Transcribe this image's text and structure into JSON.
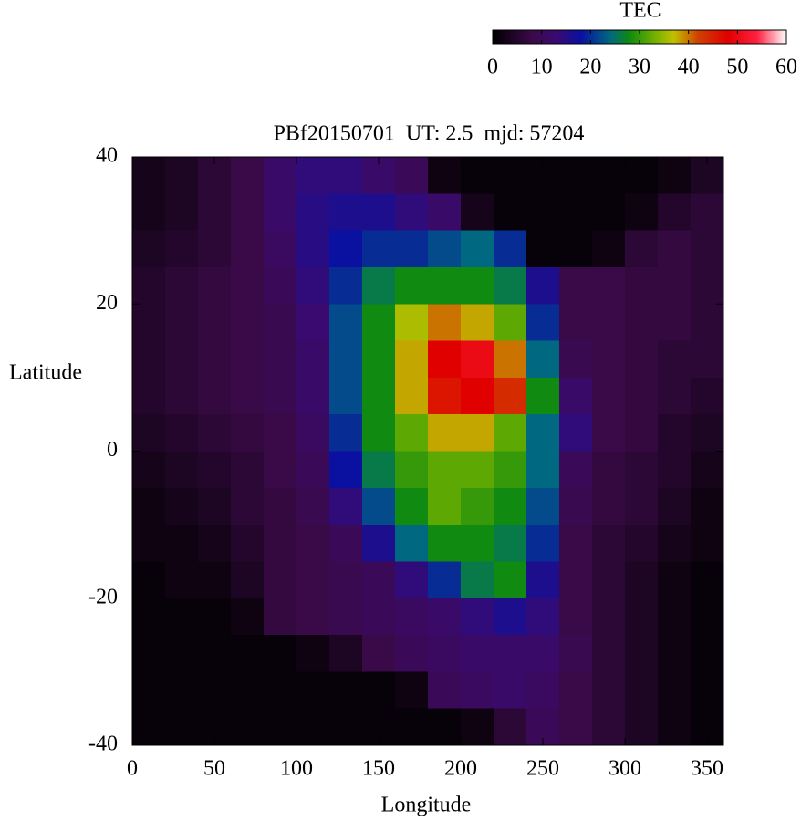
{
  "chart_data": {
    "type": "heatmap",
    "title": "PBf20150701  UT: 2.5  mjd: 57204",
    "xlabel": "Longitude",
    "ylabel": "Latitude",
    "colorbar_label": "TEC",
    "xlim": [
      0,
      360
    ],
    "ylim": [
      -40,
      40
    ],
    "xticks": [
      0,
      50,
      100,
      150,
      200,
      250,
      300,
      350
    ],
    "yticks": [
      -40,
      -20,
      0,
      20,
      40
    ],
    "clim": [
      0,
      60
    ],
    "cticks": [
      0,
      10,
      20,
      30,
      40,
      50,
      60
    ],
    "colormap": [
      {
        "value": 0,
        "color": "#000000"
      },
      {
        "value": 8,
        "color": "#3a0a48"
      },
      {
        "value": 13,
        "color": "#3a0a70"
      },
      {
        "value": 18,
        "color": "#0a10a0"
      },
      {
        "value": 24,
        "color": "#006880"
      },
      {
        "value": 28,
        "color": "#108a10"
      },
      {
        "value": 33,
        "color": "#70b000"
      },
      {
        "value": 37,
        "color": "#c0c000"
      },
      {
        "value": 42,
        "color": "#d04000"
      },
      {
        "value": 48,
        "color": "#e00000"
      },
      {
        "value": 54,
        "color": "#ff2040"
      },
      {
        "value": 60,
        "color": "#ffffff"
      }
    ],
    "xbins": [
      0,
      20,
      40,
      60,
      80,
      100,
      120,
      140,
      160,
      180,
      200,
      220,
      240,
      260,
      280,
      300,
      320,
      340,
      360
    ],
    "ybins": [
      40,
      35,
      30,
      25,
      20,
      15,
      10,
      5,
      0,
      -5,
      -10,
      -15,
      -20,
      -25,
      -30,
      -35,
      -40
    ],
    "z": [
      [
        3,
        4,
        6,
        8,
        12,
        14,
        14,
        12,
        10,
        2,
        1,
        1,
        1,
        1,
        1,
        1,
        2,
        4
      ],
      [
        3,
        4,
        6,
        8,
        12,
        15,
        16,
        16,
        14,
        12,
        3,
        1,
        1,
        1,
        1,
        2,
        5,
        6
      ],
      [
        4,
        5,
        6,
        8,
        11,
        15,
        18,
        20,
        20,
        22,
        24,
        20,
        1,
        1,
        2,
        6,
        7,
        6
      ],
      [
        5,
        6,
        7,
        8,
        10,
        14,
        20,
        26,
        28,
        28,
        28,
        26,
        16,
        8,
        8,
        7,
        7,
        6
      ],
      [
        5,
        6,
        7,
        8,
        9,
        13,
        22,
        28,
        36,
        40,
        38,
        32,
        20,
        8,
        8,
        7,
        7,
        6
      ],
      [
        5,
        6,
        7,
        8,
        9,
        12,
        22,
        28,
        38,
        48,
        50,
        40,
        24,
        9,
        8,
        7,
        6,
        6
      ],
      [
        5,
        6,
        7,
        8,
        9,
        12,
        22,
        28,
        38,
        46,
        48,
        44,
        28,
        12,
        8,
        7,
        6,
        5
      ],
      [
        4,
        5,
        6,
        7,
        8,
        11,
        20,
        28,
        32,
        38,
        38,
        32,
        24,
        14,
        8,
        7,
        5,
        4
      ],
      [
        3,
        4,
        5,
        6,
        8,
        10,
        18,
        26,
        30,
        32,
        32,
        30,
        24,
        10,
        7,
        6,
        5,
        3
      ],
      [
        2,
        3,
        4,
        6,
        7,
        9,
        14,
        22,
        28,
        32,
        30,
        28,
        22,
        9,
        7,
        6,
        4,
        2
      ],
      [
        2,
        2,
        3,
        5,
        7,
        8,
        10,
        16,
        24,
        28,
        28,
        26,
        20,
        8,
        6,
        5,
        3,
        2
      ],
      [
        1,
        2,
        2,
        4,
        7,
        8,
        9,
        10,
        14,
        20,
        26,
        28,
        16,
        8,
        6,
        4,
        2,
        1
      ],
      [
        1,
        1,
        1,
        2,
        7,
        8,
        9,
        10,
        11,
        12,
        14,
        16,
        14,
        8,
        6,
        4,
        2,
        1
      ],
      [
        1,
        1,
        1,
        1,
        1,
        2,
        4,
        8,
        10,
        11,
        12,
        12,
        12,
        9,
        6,
        4,
        2,
        1
      ],
      [
        1,
        1,
        1,
        1,
        1,
        1,
        1,
        1,
        2,
        10,
        11,
        12,
        11,
        8,
        6,
        4,
        2,
        1
      ],
      [
        1,
        1,
        1,
        1,
        1,
        1,
        1,
        1,
        1,
        1,
        2,
        6,
        10,
        8,
        6,
        4,
        2,
        1
      ]
    ]
  }
}
